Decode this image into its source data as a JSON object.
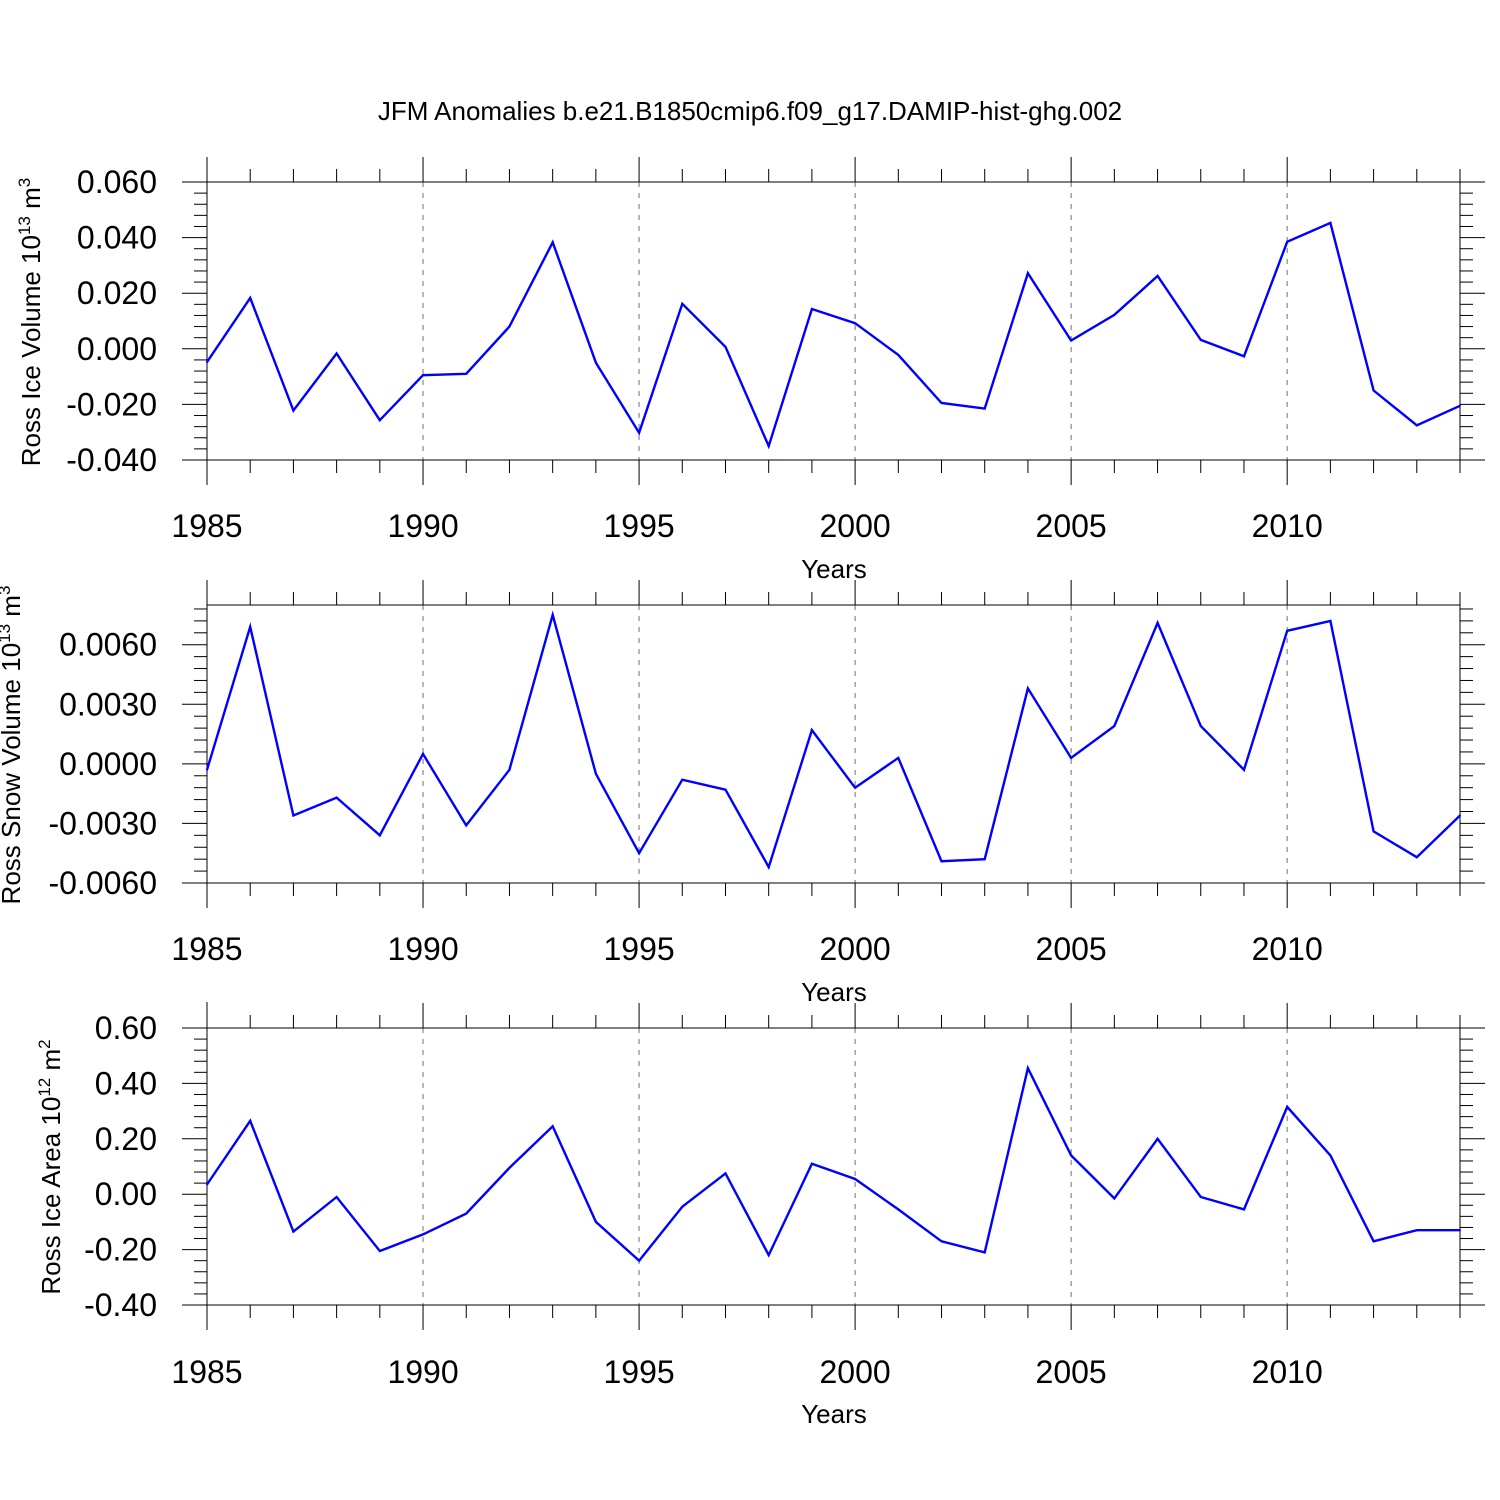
{
  "title": "JFM Anomalies b.e21.B1850cmip6.f09_g17.DAMIP-hist-ghg.002",
  "colors": {
    "line": "#0000ff",
    "grid": "#888888",
    "axis": "#000000"
  },
  "chart_data": [
    {
      "type": "line",
      "ylabel_text": "Ross Ice Volume 10",
      "ylabel_exp": "13",
      "ylabel_unit": "m",
      "ylabel_unit_exp": "3",
      "xlabel": "Years",
      "xlim": [
        1985,
        2014
      ],
      "ylim": [
        -0.04,
        0.06
      ],
      "yticks": [
        -0.04,
        -0.02,
        0.0,
        0.02,
        0.04,
        0.06
      ],
      "ytick_labels": [
        "-0.040",
        "-0.020",
        "0.000",
        "0.020",
        "0.040",
        "0.060"
      ],
      "xticks": [
        1985,
        1990,
        1995,
        2000,
        2005,
        2010
      ],
      "xtick_labels": [
        "1985",
        "1990",
        "1995",
        "2000",
        "2005",
        "2010"
      ],
      "grid_x": [
        1990,
        1995,
        2000,
        2005,
        2010
      ],
      "series": [
        {
          "name": "Ross Ice Volume",
          "x": [
            1985,
            1986,
            1987,
            1988,
            1989,
            1990,
            1991,
            1992,
            1993,
            1994,
            1995,
            1996,
            1997,
            1998,
            1999,
            2000,
            2001,
            2002,
            2003,
            2004,
            2005,
            2006,
            2007,
            2008,
            2009,
            2010,
            2011,
            2012,
            2013,
            2014
          ],
          "values": [
            -0.0048,
            0.0183,
            -0.0222,
            -0.0017,
            -0.0257,
            -0.0095,
            -0.009,
            0.008,
            0.0383,
            -0.005,
            -0.0302,
            0.0162,
            0.0007,
            -0.035,
            0.0143,
            0.0092,
            -0.0022,
            -0.0195,
            -0.0215,
            0.0272,
            0.003,
            0.0122,
            0.0262,
            0.0032,
            -0.0027,
            0.0385,
            0.0453,
            -0.015,
            -0.0275,
            -0.0205
          ]
        }
      ]
    },
    {
      "type": "line",
      "ylabel_text": "Ross Snow Volume 10",
      "ylabel_exp": "13",
      "ylabel_unit": "m",
      "ylabel_unit_exp": "3",
      "xlabel": "Years",
      "xlim": [
        1985,
        2014
      ],
      "ylim": [
        -0.006,
        0.008
      ],
      "yticks": [
        -0.006,
        -0.003,
        0.0,
        0.003,
        0.006
      ],
      "ytick_labels": [
        "-0.0060",
        "-0.0030",
        "0.0000",
        "0.0030",
        "0.0060"
      ],
      "xticks": [
        1985,
        1990,
        1995,
        2000,
        2005,
        2010
      ],
      "xtick_labels": [
        "1985",
        "1990",
        "1995",
        "2000",
        "2005",
        "2010"
      ],
      "grid_x": [
        1990,
        1995,
        2000,
        2005,
        2010
      ],
      "series": [
        {
          "name": "Ross Snow Volume",
          "x": [
            1985,
            1986,
            1987,
            1988,
            1989,
            1990,
            1991,
            1992,
            1993,
            1994,
            1995,
            1996,
            1997,
            1998,
            1999,
            2000,
            2001,
            2002,
            2003,
            2004,
            2005,
            2006,
            2007,
            2008,
            2009,
            2010,
            2011,
            2012,
            2013,
            2014
          ],
          "values": [
            -0.0003,
            0.0069,
            -0.0026,
            -0.0017,
            -0.0036,
            0.0005,
            -0.0031,
            -0.0003,
            0.0075,
            -0.0005,
            -0.0045,
            -0.0008,
            -0.0013,
            -0.0052,
            0.0017,
            -0.0012,
            0.0003,
            -0.0049,
            -0.0048,
            0.0038,
            0.0003,
            0.0019,
            0.0071,
            0.0019,
            -0.0003,
            0.0067,
            0.0072,
            -0.0034,
            -0.0047,
            -0.0026
          ]
        }
      ]
    },
    {
      "type": "line",
      "ylabel_text": "Ross Ice Area 10",
      "ylabel_exp": "12",
      "ylabel_unit": "m",
      "ylabel_unit_exp": "2",
      "xlabel": "Years",
      "xlim": [
        1985,
        2014
      ],
      "ylim": [
        -0.4,
        0.6
      ],
      "yticks": [
        -0.4,
        -0.2,
        0.0,
        0.2,
        0.4,
        0.6
      ],
      "ytick_labels": [
        "-0.40",
        "-0.20",
        "0.00",
        "0.20",
        "0.40",
        "0.60"
      ],
      "xticks": [
        1985,
        1990,
        1995,
        2000,
        2005,
        2010
      ],
      "xtick_labels": [
        "1985",
        "1990",
        "1995",
        "2000",
        "2005",
        "2010"
      ],
      "grid_x": [
        1990,
        1995,
        2000,
        2005,
        2010
      ],
      "series": [
        {
          "name": "Ross Ice Area",
          "x": [
            1985,
            1986,
            1987,
            1988,
            1989,
            1990,
            1991,
            1992,
            1993,
            1994,
            1995,
            1996,
            1997,
            1998,
            1999,
            2000,
            2001,
            2002,
            2003,
            2004,
            2005,
            2006,
            2007,
            2008,
            2009,
            2010,
            2011,
            2012,
            2013,
            2014
          ],
          "values": [
            0.035,
            0.265,
            -0.135,
            -0.01,
            -0.205,
            -0.145,
            -0.07,
            0.095,
            0.245,
            -0.1,
            -0.24,
            -0.045,
            0.075,
            -0.22,
            0.11,
            0.055,
            -0.055,
            -0.17,
            -0.21,
            0.455,
            0.14,
            -0.015,
            0.2,
            -0.01,
            -0.055,
            0.315,
            0.14,
            -0.17,
            -0.13,
            -0.13
          ]
        }
      ]
    }
  ]
}
